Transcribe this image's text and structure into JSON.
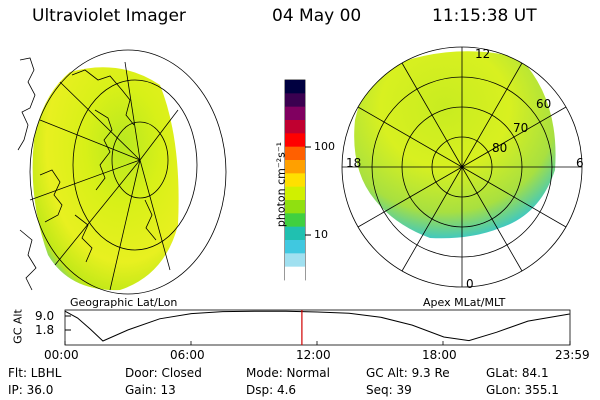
{
  "header": {
    "instrument": "Ultraviolet Imager",
    "date": "04 May 00",
    "time": "11:15:38 UT"
  },
  "left_panel": {
    "label": "Geographic Lat/Lon"
  },
  "right_panel": {
    "label": "Apex MLat/MLT",
    "mlt_labels": [
      "12",
      "18",
      "6",
      "0"
    ],
    "lat_labels": [
      "60",
      "70",
      "80"
    ]
  },
  "colorbar": {
    "unit_label": "photon cm⁻²s⁻¹",
    "ticks": [
      "100",
      "10"
    ],
    "colors": [
      "#000040",
      "#3a0050",
      "#800060",
      "#c00030",
      "#ff0000",
      "#ff6000",
      "#ffa000",
      "#ffe000",
      "#d0f000",
      "#90e010",
      "#40d040",
      "#20c0b0",
      "#40c8e0",
      "#a0e0f0",
      "#ffffff"
    ]
  },
  "altitude_plot": {
    "ylabel": "GC Alt",
    "yticks": [
      "9.0",
      "1.8"
    ],
    "xticks": [
      "00:00",
      "06:00",
      "12:00",
      "18:00",
      "23:59"
    ],
    "altitude": [
      9.3,
      7.6,
      4.8,
      1.8,
      4.6,
      7.4,
      8.7,
      9.2,
      9.3,
      9.3,
      9.1,
      8.8,
      7.8,
      5.8,
      2.8,
      1.9,
      4.0,
      6.8,
      8.6
    ],
    "altitude_times": [
      0.0,
      0.6,
      1.2,
      1.8,
      3.0,
      4.5,
      6.0,
      7.5,
      9.0,
      10.5,
      12.0,
      13.5,
      15.0,
      16.5,
      18.0,
      19.2,
      20.5,
      22.0,
      23.98
    ],
    "marker_time": 11.26
  },
  "status": {
    "filter": "Flt: LBHL",
    "ip": "IP: 36.0",
    "door": "Door: Closed",
    "gain": "Gain: 13",
    "mode": "Mode: Normal",
    "dsp": "Dsp:    4.6",
    "gc_alt": "GC Alt: 9.3 Re",
    "seq": "Seq: 39",
    "glat": "GLat:  84.1",
    "glon": "GLon: 355.1"
  }
}
